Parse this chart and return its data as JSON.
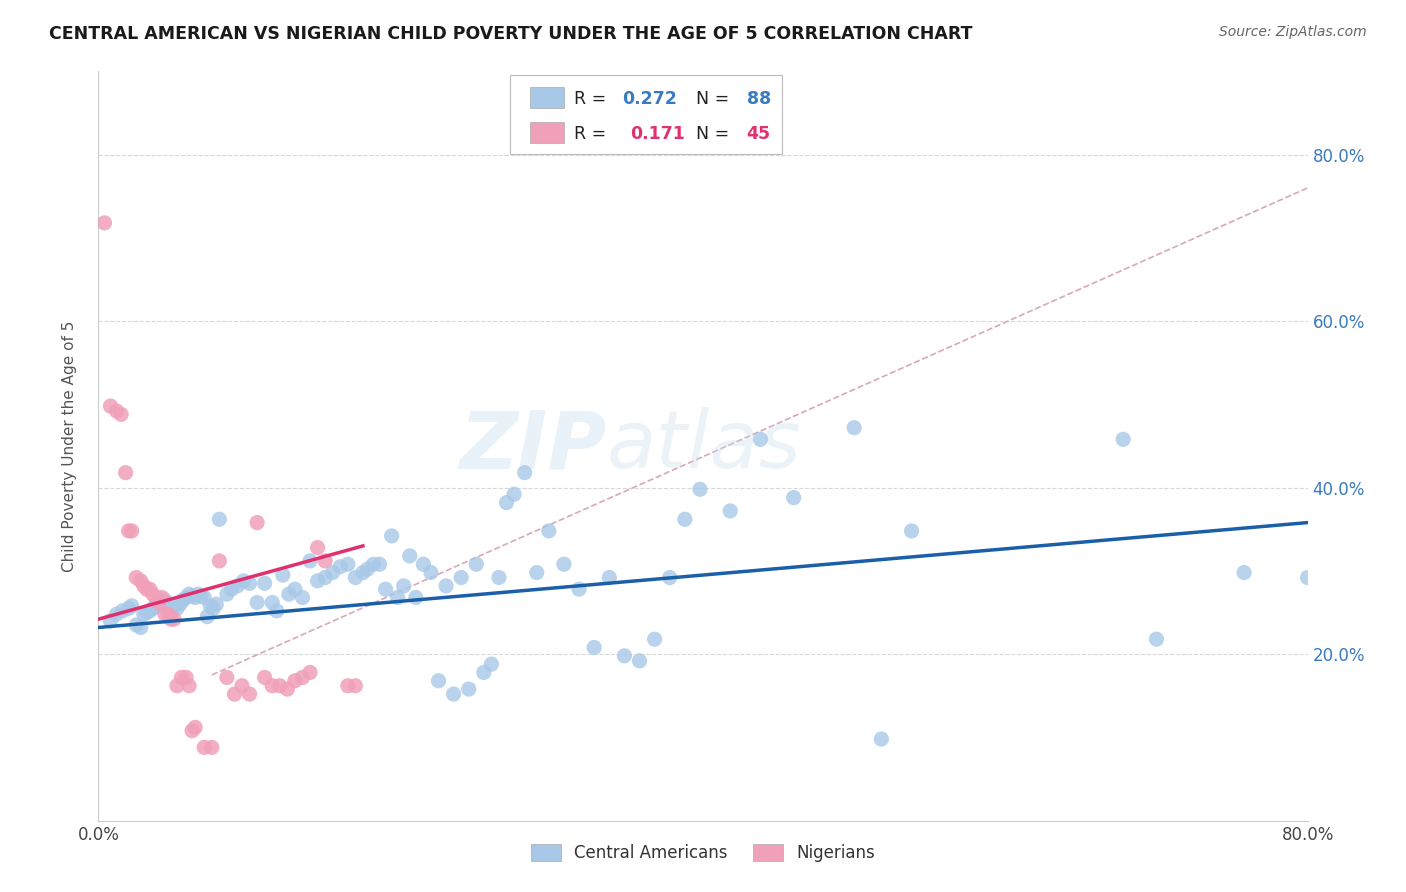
{
  "title": "CENTRAL AMERICAN VS NIGERIAN CHILD POVERTY UNDER THE AGE OF 5 CORRELATION CHART",
  "source": "Source: ZipAtlas.com",
  "ylabel": "Child Poverty Under the Age of 5",
  "xlim": [
    0.0,
    0.8
  ],
  "ylim": [
    0.0,
    0.9
  ],
  "xticks": [
    0.0,
    0.1,
    0.2,
    0.3,
    0.4,
    0.5,
    0.6,
    0.7,
    0.8
  ],
  "xticklabels": [
    "0.0%",
    "",
    "",
    "",
    "",
    "",
    "",
    "",
    "80.0%"
  ],
  "ytick_positions": [
    0.2,
    0.4,
    0.6,
    0.8
  ],
  "ytick_labels": [
    "20.0%",
    "40.0%",
    "60.0%",
    "80.0%"
  ],
  "background_color": "#ffffff",
  "grid_color": "#d8d8d8",
  "watermark_zip": "ZIP",
  "watermark_atlas": "atlas",
  "blue_color": "#a8c8e8",
  "pink_color": "#f0a0b8",
  "blue_line_color": "#1a5fa8",
  "pink_line_color": "#e03070",
  "dashed_line_color": "#d8a8b8",
  "right_tick_color": "#3a7abf",
  "blue_scatter": [
    [
      0.008,
      0.24
    ],
    [
      0.012,
      0.248
    ],
    [
      0.016,
      0.252
    ],
    [
      0.02,
      0.255
    ],
    [
      0.022,
      0.258
    ],
    [
      0.025,
      0.235
    ],
    [
      0.028,
      0.232
    ],
    [
      0.03,
      0.248
    ],
    [
      0.032,
      0.25
    ],
    [
      0.034,
      0.252
    ],
    [
      0.036,
      0.255
    ],
    [
      0.038,
      0.258
    ],
    [
      0.04,
      0.26
    ],
    [
      0.042,
      0.262
    ],
    [
      0.044,
      0.265
    ],
    [
      0.046,
      0.255
    ],
    [
      0.048,
      0.252
    ],
    [
      0.05,
      0.258
    ],
    [
      0.052,
      0.255
    ],
    [
      0.054,
      0.26
    ],
    [
      0.056,
      0.265
    ],
    [
      0.058,
      0.268
    ],
    [
      0.06,
      0.272
    ],
    [
      0.062,
      0.27
    ],
    [
      0.064,
      0.268
    ],
    [
      0.066,
      0.272
    ],
    [
      0.068,
      0.27
    ],
    [
      0.07,
      0.268
    ],
    [
      0.072,
      0.245
    ],
    [
      0.074,
      0.258
    ],
    [
      0.076,
      0.255
    ],
    [
      0.078,
      0.26
    ],
    [
      0.08,
      0.362
    ],
    [
      0.085,
      0.272
    ],
    [
      0.088,
      0.278
    ],
    [
      0.092,
      0.282
    ],
    [
      0.096,
      0.288
    ],
    [
      0.1,
      0.285
    ],
    [
      0.105,
      0.262
    ],
    [
      0.11,
      0.285
    ],
    [
      0.115,
      0.262
    ],
    [
      0.118,
      0.252
    ],
    [
      0.122,
      0.295
    ],
    [
      0.126,
      0.272
    ],
    [
      0.13,
      0.278
    ],
    [
      0.135,
      0.268
    ],
    [
      0.14,
      0.312
    ],
    [
      0.145,
      0.288
    ],
    [
      0.15,
      0.292
    ],
    [
      0.155,
      0.298
    ],
    [
      0.16,
      0.305
    ],
    [
      0.165,
      0.308
    ],
    [
      0.17,
      0.292
    ],
    [
      0.175,
      0.298
    ],
    [
      0.178,
      0.302
    ],
    [
      0.182,
      0.308
    ],
    [
      0.186,
      0.308
    ],
    [
      0.19,
      0.278
    ],
    [
      0.194,
      0.342
    ],
    [
      0.198,
      0.268
    ],
    [
      0.202,
      0.282
    ],
    [
      0.206,
      0.318
    ],
    [
      0.21,
      0.268
    ],
    [
      0.215,
      0.308
    ],
    [
      0.22,
      0.298
    ],
    [
      0.225,
      0.168
    ],
    [
      0.23,
      0.282
    ],
    [
      0.235,
      0.152
    ],
    [
      0.24,
      0.292
    ],
    [
      0.245,
      0.158
    ],
    [
      0.25,
      0.308
    ],
    [
      0.255,
      0.178
    ],
    [
      0.26,
      0.188
    ],
    [
      0.265,
      0.292
    ],
    [
      0.27,
      0.382
    ],
    [
      0.275,
      0.392
    ],
    [
      0.282,
      0.418
    ],
    [
      0.29,
      0.298
    ],
    [
      0.298,
      0.348
    ],
    [
      0.308,
      0.308
    ],
    [
      0.318,
      0.278
    ],
    [
      0.328,
      0.208
    ],
    [
      0.338,
      0.292
    ],
    [
      0.348,
      0.198
    ],
    [
      0.358,
      0.192
    ],
    [
      0.368,
      0.218
    ],
    [
      0.378,
      0.292
    ],
    [
      0.388,
      0.362
    ],
    [
      0.398,
      0.398
    ],
    [
      0.418,
      0.372
    ],
    [
      0.438,
      0.458
    ],
    [
      0.46,
      0.388
    ],
    [
      0.5,
      0.472
    ],
    [
      0.518,
      0.098
    ],
    [
      0.538,
      0.348
    ],
    [
      0.678,
      0.458
    ],
    [
      0.7,
      0.218
    ],
    [
      0.758,
      0.298
    ],
    [
      0.8,
      0.292
    ]
  ],
  "pink_scatter": [
    [
      0.004,
      0.718
    ],
    [
      0.008,
      0.498
    ],
    [
      0.012,
      0.492
    ],
    [
      0.015,
      0.488
    ],
    [
      0.018,
      0.418
    ],
    [
      0.02,
      0.348
    ],
    [
      0.022,
      0.348
    ],
    [
      0.025,
      0.292
    ],
    [
      0.028,
      0.288
    ],
    [
      0.03,
      0.282
    ],
    [
      0.032,
      0.278
    ],
    [
      0.034,
      0.278
    ],
    [
      0.036,
      0.272
    ],
    [
      0.038,
      0.268
    ],
    [
      0.04,
      0.262
    ],
    [
      0.042,
      0.268
    ],
    [
      0.044,
      0.248
    ],
    [
      0.046,
      0.248
    ],
    [
      0.048,
      0.242
    ],
    [
      0.05,
      0.242
    ],
    [
      0.052,
      0.162
    ],
    [
      0.055,
      0.172
    ],
    [
      0.058,
      0.172
    ],
    [
      0.06,
      0.162
    ],
    [
      0.062,
      0.108
    ],
    [
      0.064,
      0.112
    ],
    [
      0.07,
      0.088
    ],
    [
      0.075,
      0.088
    ],
    [
      0.08,
      0.312
    ],
    [
      0.085,
      0.172
    ],
    [
      0.09,
      0.152
    ],
    [
      0.095,
      0.162
    ],
    [
      0.1,
      0.152
    ],
    [
      0.105,
      0.358
    ],
    [
      0.11,
      0.172
    ],
    [
      0.115,
      0.162
    ],
    [
      0.12,
      0.162
    ],
    [
      0.125,
      0.158
    ],
    [
      0.13,
      0.168
    ],
    [
      0.135,
      0.172
    ],
    [
      0.14,
      0.178
    ],
    [
      0.145,
      0.328
    ],
    [
      0.15,
      0.312
    ],
    [
      0.165,
      0.162
    ],
    [
      0.17,
      0.162
    ]
  ],
  "blue_trendline_x": [
    0.0,
    0.8
  ],
  "blue_trendline_y": [
    0.232,
    0.358
  ],
  "pink_trendline_x": [
    0.0,
    0.175
  ],
  "pink_trendline_y": [
    0.242,
    0.33
  ],
  "dashed_trendline_x": [
    0.075,
    0.8
  ],
  "dashed_trendline_y": [
    0.175,
    0.76
  ]
}
